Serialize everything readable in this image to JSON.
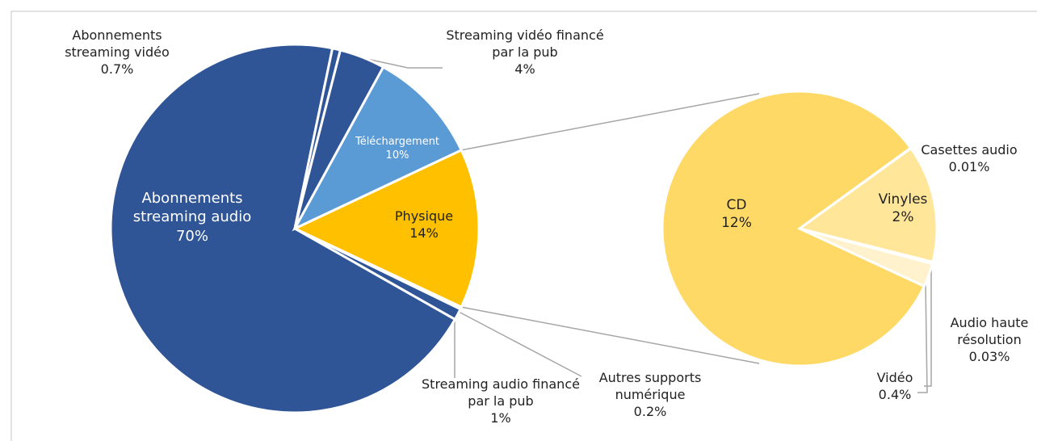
{
  "chart_data": [
    {
      "type": "pie",
      "categories": [
        "Physique",
        "Autres supports numérique",
        "Streaming audio financé par la pub",
        "Abonnements streaming audio",
        "Abonnements streaming vidéo",
        "Streaming vidéo financé par la pub",
        "Téléchargement"
      ],
      "values": [
        14,
        0.2,
        1,
        70,
        0.7,
        4,
        10
      ],
      "value_labels": [
        "14%",
        "0.2%",
        "1%",
        "70%",
        "0.7%",
        "4%",
        "10%"
      ],
      "colors": [
        "#ffc000",
        "#2f5597",
        "#2f5597",
        "#2f5597",
        "#2f5597",
        "#2f5597",
        "#5b9bd5"
      ]
    },
    {
      "type": "pie",
      "categories": [
        "Casettes audio",
        "Vinyles",
        "Audio haute résolution",
        "Vidéo",
        "CD"
      ],
      "values": [
        0.01,
        2,
        0.03,
        0.4,
        12
      ],
      "value_labels": [
        "0.01%",
        "2%",
        "0.03%",
        "0.4%",
        "12%"
      ],
      "colors": [
        "#ffe699",
        "#ffe699",
        "#fff2cc",
        "#fff2cc",
        "#ffd966"
      ]
    }
  ]
}
